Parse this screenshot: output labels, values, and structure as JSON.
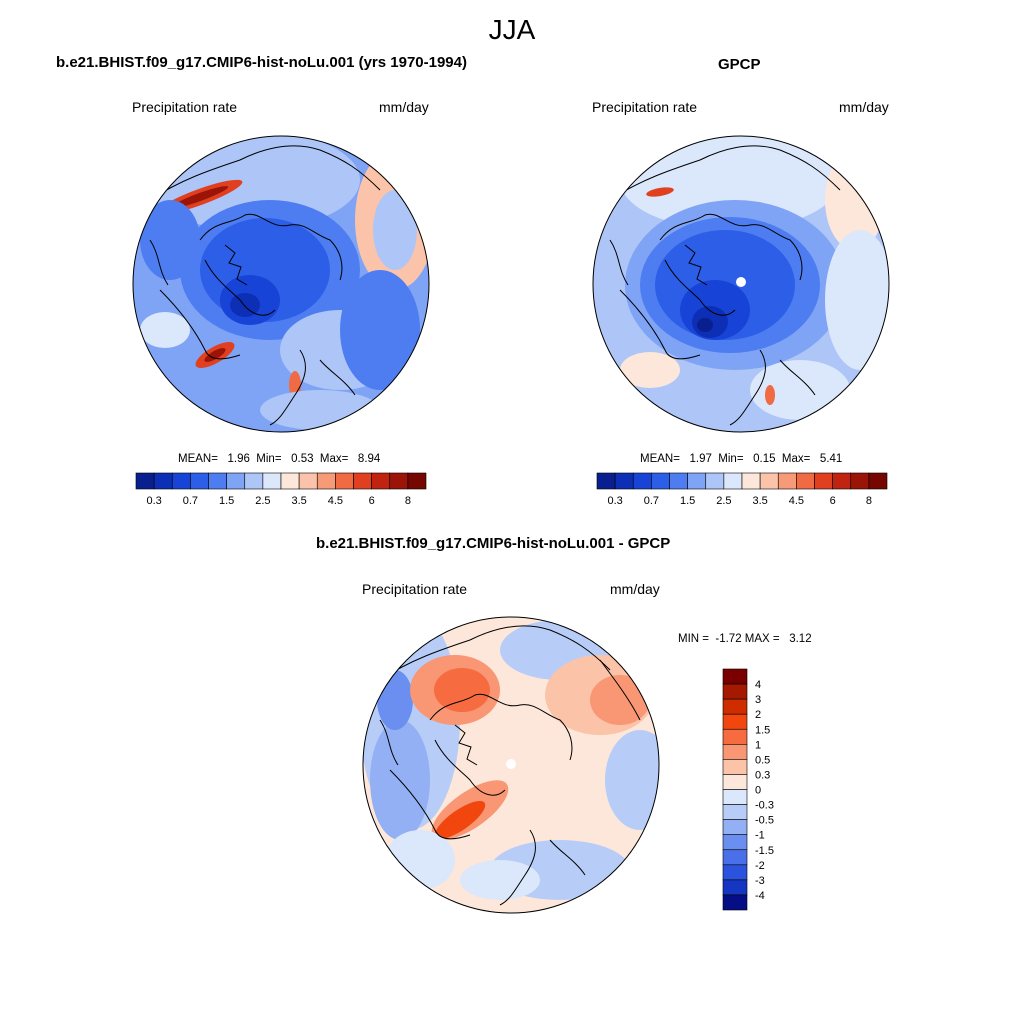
{
  "figure": {
    "season": "JJA"
  },
  "panels": [
    {
      "title": "b.e21.BHIST.f09_g17.CMIP6-hist-noLu.001 (yrs 1970-1994)",
      "left_label": "Precipitation rate",
      "right_label": "mm/day",
      "stats": {
        "mean": "1.96",
        "min": "0.53",
        "max": "8.94",
        "text": "MEAN=   1.96  Min=   0.53  Max=   8.94"
      },
      "colorbar_ticks": [
        "0.3",
        "0.7",
        "1.5",
        "2.5",
        "3.5",
        "4.5",
        "6",
        "8"
      ]
    },
    {
      "title": "GPCP",
      "left_label": "Precipitation rate",
      "right_label": "mm/day",
      "stats": {
        "mean": "1.97",
        "min": "0.15",
        "max": "5.41",
        "text": "MEAN=   1.97  Min=   0.15  Max=   5.41"
      },
      "colorbar_ticks": [
        "0.3",
        "0.7",
        "1.5",
        "2.5",
        "3.5",
        "4.5",
        "6",
        "8"
      ]
    },
    {
      "title": "b.e21.BHIST.f09_g17.CMIP6-hist-noLu.001 - GPCP",
      "left_label": "Precipitation rate",
      "right_label": "mm/day",
      "stats": {
        "min": "-1.72",
        "max": "3.12",
        "text": "MIN =  -1.72 MAX =   3.12"
      },
      "colorbar_ticks": [
        "4",
        "3",
        "2",
        "1.5",
        "1",
        "0.5",
        "0.3",
        "0",
        "-0.3",
        "-0.5",
        "-1",
        "-1.5",
        "-2",
        "-3",
        "-4"
      ]
    }
  ],
  "colors": {
    "precip_scale": [
      "#0a1f8f",
      "#0c2fb5",
      "#1744d6",
      "#2d5ee8",
      "#4d7df0",
      "#7fa4f5",
      "#adc6f7",
      "#dbe7fb",
      "#fde7da",
      "#fbc3aa",
      "#f79a78",
      "#f06a44",
      "#e0401f",
      "#c02310",
      "#9a1408",
      "#760600"
    ],
    "diff_scale": [
      "#7a0000",
      "#a51900",
      "#cf2c00",
      "#f1470f",
      "#f66c40",
      "#f99673",
      "#fbc3a8",
      "#fde7da",
      "#dbe7fb",
      "#b7cdf7",
      "#92b0f3",
      "#6b8ff0",
      "#4a6fe8",
      "#2b53dd",
      "#1536c2",
      "#050e85"
    ],
    "coastline": "#000000"
  },
  "icons": [
    "north-pole-marker"
  ]
}
